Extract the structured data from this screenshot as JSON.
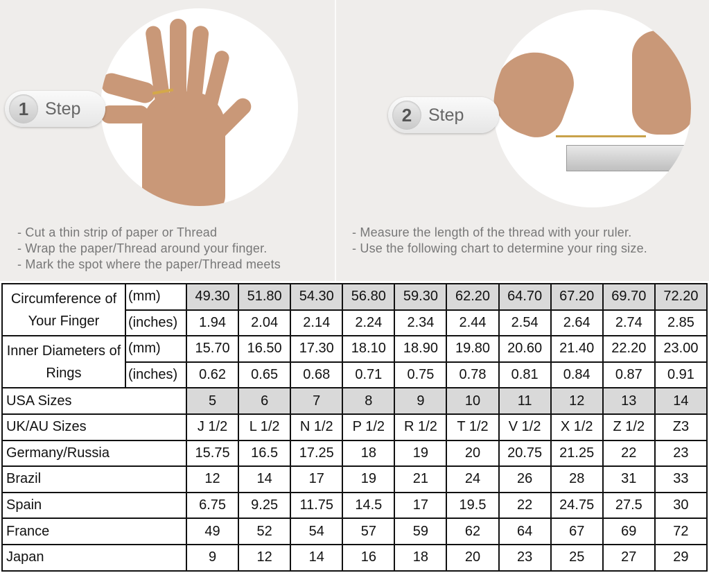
{
  "steps": [
    {
      "number": "1",
      "label": "Step",
      "instructions": [
        "- Cut a thin strip of paper or Thread",
        "- Wrap the paper/Thread around your finger.",
        "- Mark the spot where the paper/Thread meets"
      ]
    },
    {
      "number": "2",
      "label": "Step",
      "instructions": [
        "- Measure the length of the thread with your ruler.",
        "- Use the following chart to determine your ring size."
      ]
    }
  ],
  "table": {
    "shade_color": "#d9d9d9",
    "groups": [
      {
        "label": "Circumference of Your Finger",
        "rows": [
          {
            "unit": "(mm)",
            "shaded": true,
            "values": [
              "49.30",
              "51.80",
              "54.30",
              "56.80",
              "59.30",
              "62.20",
              "64.70",
              "67.20",
              "69.70",
              "72.20"
            ]
          },
          {
            "unit": "(inches)",
            "shaded": false,
            "values": [
              "1.94",
              "2.04",
              "2.14",
              "2.24",
              "2.34",
              "2.44",
              "2.54",
              "2.64",
              "2.74",
              "2.85"
            ]
          }
        ]
      },
      {
        "label": "Inner Diameters of Rings",
        "rows": [
          {
            "unit": "(mm)",
            "shaded": false,
            "values": [
              "15.70",
              "16.50",
              "17.30",
              "18.10",
              "18.90",
              "19.80",
              "20.60",
              "21.40",
              "22.20",
              "23.00"
            ]
          },
          {
            "unit": "(inches)",
            "shaded": false,
            "values": [
              "0.62",
              "0.65",
              "0.68",
              "0.71",
              "0.75",
              "0.78",
              "0.81",
              "0.84",
              "0.87",
              "0.91"
            ]
          }
        ]
      }
    ],
    "rows": [
      {
        "label": "USA Sizes",
        "shaded": true,
        "values": [
          "5",
          "6",
          "7",
          "8",
          "9",
          "10",
          "11",
          "12",
          "13",
          "14"
        ]
      },
      {
        "label": "UK/AU Sizes",
        "shaded": false,
        "values": [
          "J 1/2",
          "L 1/2",
          "N 1/2",
          "P 1/2",
          "R 1/2",
          "T 1/2",
          "V 1/2",
          "X 1/2",
          "Z 1/2",
          "Z3"
        ]
      },
      {
        "label": "Germany/Russia",
        "shaded": false,
        "values": [
          "15.75",
          "16.5",
          "17.25",
          "18",
          "19",
          "20",
          "20.75",
          "21.25",
          "22",
          "23"
        ]
      },
      {
        "label": "Brazil",
        "shaded": false,
        "values": [
          "12",
          "14",
          "17",
          "19",
          "21",
          "24",
          "26",
          "28",
          "31",
          "33"
        ]
      },
      {
        "label": "Spain",
        "shaded": false,
        "values": [
          "6.75",
          "9.25",
          "11.75",
          "14.5",
          "17",
          "19.5",
          "22",
          "24.75",
          "27.5",
          "30"
        ]
      },
      {
        "label": "France",
        "shaded": false,
        "values": [
          "49",
          "52",
          "54",
          "57",
          "59",
          "62",
          "64",
          "67",
          "69",
          "72"
        ]
      },
      {
        "label": "Japan",
        "shaded": false,
        "values": [
          "9",
          "12",
          "14",
          "16",
          "18",
          "20",
          "23",
          "25",
          "27",
          "29"
        ]
      }
    ]
  }
}
